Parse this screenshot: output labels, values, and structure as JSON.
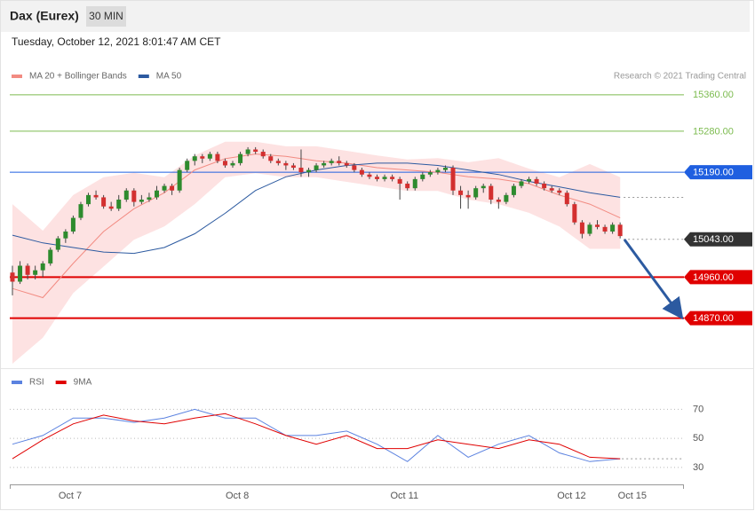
{
  "header": {
    "instrument": "Dax (Eurex)",
    "timeframe": "30 MIN",
    "timestamp": "Tuesday, October 12, 2021 8:01:47 AM CET"
  },
  "chart_data": [
    {
      "type": "candlestick",
      "credit": "Research © 2021 Trading Central",
      "xlim": [
        -0.35,
        88.4
      ],
      "ylim": [
        14770,
        15383
      ],
      "up_color": "#2e8b2e",
      "down_color": "#d32f2f",
      "ohlc": [
        [
          14970,
          14985,
          14920,
          14950
        ],
        [
          14950,
          14995,
          14945,
          14985
        ],
        [
          14985,
          14990,
          14955,
          14965
        ],
        [
          14965,
          14985,
          14955,
          14975
        ],
        [
          14975,
          14995,
          14960,
          14990
        ],
        [
          14990,
          15025,
          14985,
          15020
        ],
        [
          15020,
          15050,
          15015,
          15045
        ],
        [
          15045,
          15065,
          15035,
          15060
        ],
        [
          15060,
          15095,
          15055,
          15090
        ],
        [
          15090,
          15125,
          15085,
          15120
        ],
        [
          15120,
          15145,
          15115,
          15140
        ],
        [
          15140,
          15150,
          15130,
          15135
        ],
        [
          15135,
          15140,
          15110,
          15115
        ],
        [
          15115,
          15125,
          15105,
          15110
        ],
        [
          15110,
          15140,
          15105,
          15130
        ],
        [
          15130,
          15155,
          15125,
          15150
        ],
        [
          15150,
          15155,
          15115,
          15125
        ],
        [
          15125,
          15140,
          15120,
          15130
        ],
        [
          15130,
          15145,
          15125,
          15135
        ],
        [
          15135,
          15160,
          15130,
          15150
        ],
        [
          15150,
          15165,
          15145,
          15160
        ],
        [
          15160,
          15165,
          15140,
          15150
        ],
        [
          15150,
          15200,
          15145,
          15195
        ],
        [
          15195,
          15220,
          15190,
          15215
        ],
        [
          15215,
          15230,
          15205,
          15225
        ],
        [
          15225,
          15230,
          15210,
          15220
        ],
        [
          15220,
          15235,
          15215,
          15230
        ],
        [
          15230,
          15235,
          15210,
          15215
        ],
        [
          15215,
          15220,
          15200,
          15205
        ],
        [
          15205,
          15215,
          15200,
          15210
        ],
        [
          15210,
          15235,
          15205,
          15230
        ],
        [
          15230,
          15245,
          15225,
          15240
        ],
        [
          15240,
          15245,
          15230,
          15235
        ],
        [
          15235,
          15240,
          15220,
          15225
        ],
        [
          15225,
          15230,
          15210,
          15215
        ],
        [
          15215,
          15220,
          15205,
          15210
        ],
        [
          15210,
          15215,
          15195,
          15205
        ],
        [
          15205,
          15210,
          15195,
          15200
        ],
        [
          15200,
          15240,
          15180,
          15190
        ],
        [
          15190,
          15200,
          15180,
          15195
        ],
        [
          15195,
          15210,
          15190,
          15205
        ],
        [
          15205,
          15215,
          15200,
          15210
        ],
        [
          15210,
          15220,
          15205,
          15215
        ],
        [
          15215,
          15225,
          15205,
          15210
        ],
        [
          15210,
          15215,
          15200,
          15205
        ],
        [
          15205,
          15210,
          15190,
          15195
        ],
        [
          15195,
          15200,
          15180,
          15185
        ],
        [
          15185,
          15190,
          15175,
          15180
        ],
        [
          15180,
          15185,
          15170,
          15175
        ],
        [
          15175,
          15185,
          15170,
          15180
        ],
        [
          15180,
          15185,
          15170,
          15175
        ],
        [
          15175,
          15180,
          15130,
          15165
        ],
        [
          15165,
          15170,
          15150,
          15155
        ],
        [
          15155,
          15180,
          15150,
          15175
        ],
        [
          15175,
          15190,
          15170,
          15185
        ],
        [
          15185,
          15195,
          15180,
          15190
        ],
        [
          15190,
          15200,
          15185,
          15195
        ],
        [
          15195,
          15205,
          15190,
          15200
        ],
        [
          15200,
          15205,
          15140,
          15150
        ],
        [
          15150,
          15160,
          15110,
          15140
        ],
        [
          15140,
          15150,
          15110,
          15135
        ],
        [
          15135,
          15160,
          15130,
          15155
        ],
        [
          15155,
          15165,
          15145,
          15160
        ],
        [
          15160,
          15165,
          15120,
          15130
        ],
        [
          15130,
          15135,
          15110,
          15125
        ],
        [
          15125,
          15145,
          15120,
          15140
        ],
        [
          15140,
          15165,
          15135,
          15160
        ],
        [
          15160,
          15175,
          15155,
          15170
        ],
        [
          15170,
          15180,
          15165,
          15175
        ],
        [
          15175,
          15180,
          15160,
          15165
        ],
        [
          15165,
          15170,
          15150,
          15155
        ],
        [
          15155,
          15160,
          15145,
          15150
        ],
        [
          15150,
          15155,
          15140,
          15145
        ],
        [
          15145,
          15150,
          15115,
          15120
        ],
        [
          15120,
          15125,
          15075,
          15080
        ],
        [
          15080,
          15085,
          15045,
          15055
        ],
        [
          15055,
          15080,
          15050,
          15075
        ],
        [
          15075,
          15085,
          15065,
          15070
        ],
        [
          15070,
          15075,
          15055,
          15060
        ],
        [
          15060,
          15080,
          15055,
          15075
        ],
        [
          15075,
          15080,
          15045,
          15050
        ]
      ],
      "series": [
        {
          "name": "MA 20 + Bollinger Bands",
          "color": "#f28b82",
          "band_color": "#fde2e2",
          "x": [
            0,
            4,
            8,
            12,
            16,
            20,
            24,
            28,
            32,
            36,
            40,
            44,
            48,
            52,
            56,
            60,
            64,
            68,
            72,
            76,
            80
          ],
          "values": [
            14935,
            14915,
            14990,
            15060,
            15110,
            15145,
            15195,
            15220,
            15230,
            15225,
            15215,
            15210,
            15200,
            15195,
            15190,
            15180,
            15175,
            15165,
            15140,
            15120,
            15090
          ],
          "upper": [
            15120,
            15062,
            15140,
            15179,
            15189,
            15179,
            15227,
            15257,
            15257,
            15247,
            15247,
            15237,
            15227,
            15218,
            15221,
            15212,
            15221,
            15198,
            15179,
            15208,
            15179
          ],
          "lower": [
            14770,
            14827,
            14925,
            14983,
            15042,
            15071,
            15120,
            15179,
            15188,
            15179,
            15179,
            15169,
            15159,
            15149,
            15149,
            15130,
            15120,
            15101,
            15071,
            15022,
            15022
          ]
        },
        {
          "name": "MA 50",
          "color": "#2c5aa0",
          "x": [
            0,
            4,
            8,
            12,
            16,
            20,
            24,
            28,
            32,
            36,
            40,
            44,
            48,
            52,
            56,
            60,
            64,
            68,
            72,
            76,
            80
          ],
          "values": [
            15052,
            15035,
            15025,
            15015,
            15012,
            15025,
            15055,
            15100,
            15150,
            15180,
            15195,
            15205,
            15210,
            15210,
            15205,
            15195,
            15185,
            15170,
            15158,
            15145,
            15135
          ]
        }
      ],
      "levels": [
        {
          "value": 15360,
          "label": "15360.00",
          "color": "#7cbb4f",
          "marker": "text",
          "line": "solid"
        },
        {
          "value": 15280,
          "label": "15280.00",
          "color": "#7cbb4f",
          "marker": "text",
          "line": "solid"
        },
        {
          "value": 15190,
          "label": "15190.00",
          "color": "#1f5fe0",
          "marker": "box",
          "line": "solid"
        },
        {
          "value": 15043,
          "label": "15043.00",
          "color": "#333333",
          "marker": "box",
          "line": "dotted"
        },
        {
          "value": 14960,
          "label": "14960.00",
          "color": "#e00000",
          "marker": "box",
          "line": "solid"
        },
        {
          "value": 14870,
          "label": "14870.00",
          "color": "#e00000",
          "marker": "box",
          "line": "solid"
        }
      ]
    },
    {
      "type": "line",
      "xlim": [
        -0.35,
        88.4
      ],
      "ylim": [
        22,
        80
      ],
      "yticks": [
        30,
        50,
        70
      ],
      "xticks": [
        {
          "value": 7.6,
          "label": "Oct 7"
        },
        {
          "value": 29.6,
          "label": "Oct 8"
        },
        {
          "value": 51.6,
          "label": "Oct 11"
        },
        {
          "value": 73.6,
          "label": "Oct 12"
        },
        {
          "value": 81.6,
          "label": "Oct 15"
        }
      ],
      "series": [
        {
          "name": "RSI",
          "color": "#5b82e0",
          "x": [
            0,
            4,
            8,
            12,
            16,
            20,
            24,
            28,
            32,
            36,
            40,
            44,
            48,
            52,
            56,
            60,
            64,
            68,
            72,
            76,
            80
          ],
          "values": [
            46,
            52,
            64,
            64,
            61,
            64,
            70,
            64,
            64,
            52,
            52,
            55,
            46,
            34,
            52,
            37,
            46,
            52,
            40,
            34,
            36
          ]
        },
        {
          "name": "9MA",
          "color": "#e00000",
          "x": [
            0,
            4,
            8,
            12,
            16,
            20,
            24,
            28,
            32,
            36,
            40,
            44,
            48,
            52,
            56,
            60,
            64,
            68,
            72,
            76,
            80
          ],
          "values": [
            36,
            49,
            60,
            66,
            62,
            60,
            64,
            67,
            60,
            52,
            46,
            52,
            43,
            43,
            49,
            46,
            43,
            49,
            46,
            37,
            36
          ]
        }
      ]
    }
  ]
}
